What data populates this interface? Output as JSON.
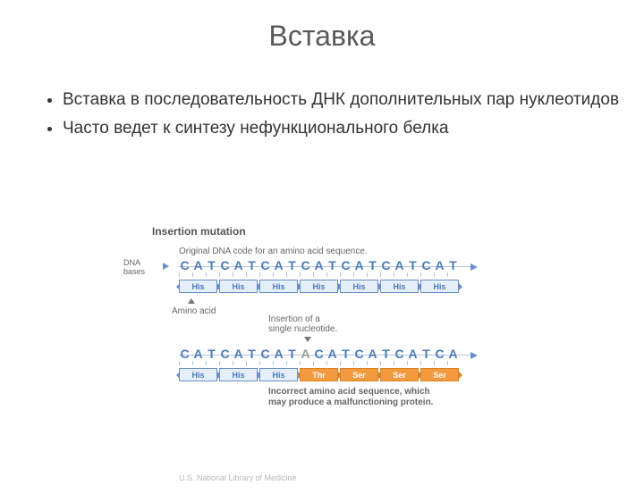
{
  "title": "Вставка",
  "bullets": [
    "Вставка в последовательность ДНК дополнительных пар нуклеотидов",
    "Часто ведет к синтезу нефункционального белка"
  ],
  "diagram": {
    "heading": "Insertion mutation",
    "original_label": "Original DNA code for an amino acid sequence.",
    "dna_bases_label": "DNA\nbases",
    "amino_acid_label": "Amino acid",
    "insertion_label": "Insertion of a\nsingle nucleotide.",
    "incorrect_label": "Incorrect amino acid sequence, which\nmay produce a malfunctioning protein.",
    "seq1": {
      "bases": [
        "C",
        "A",
        "T",
        "C",
        "A",
        "T",
        "C",
        "A",
        "T",
        "C",
        "A",
        "T",
        "C",
        "A",
        "T",
        "C",
        "A",
        "T",
        "C",
        "A",
        "T"
      ],
      "base_color": "#4a7ab8"
    },
    "seq2": {
      "bases": [
        "C",
        "A",
        "T",
        "C",
        "A",
        "T",
        "C",
        "A",
        "T",
        "A",
        "C",
        "A",
        "T",
        "C",
        "A",
        "T",
        "C",
        "A",
        "T",
        "C",
        "A"
      ],
      "inserted_index": 9,
      "base_color": "#4a7ab8",
      "inserted_color": "#9a9a9a"
    },
    "aminos1": [
      {
        "label": "His",
        "style": "blue"
      },
      {
        "label": "His",
        "style": "blue"
      },
      {
        "label": "His",
        "style": "blue"
      },
      {
        "label": "His",
        "style": "blue"
      },
      {
        "label": "His",
        "style": "blue"
      },
      {
        "label": "His",
        "style": "blue"
      },
      {
        "label": "His",
        "style": "blue"
      }
    ],
    "aminos2": [
      {
        "label": "His",
        "style": "blue"
      },
      {
        "label": "His",
        "style": "blue"
      },
      {
        "label": "His",
        "style": "blue"
      },
      {
        "label": "Thr",
        "style": "orange"
      },
      {
        "label": "Ser",
        "style": "orange"
      },
      {
        "label": "Ser",
        "style": "orange"
      },
      {
        "label": "Ser",
        "style": "orange"
      }
    ],
    "colors": {
      "blue_fill": "#e6eef9",
      "blue_border": "#6a8fc7",
      "blue_text": "#4a7ab8",
      "orange_fill": "#f39a3e",
      "orange_border": "#d9821f",
      "orange_text": "#ffffff"
    }
  },
  "credit": "U.S. National Library of Medicine"
}
